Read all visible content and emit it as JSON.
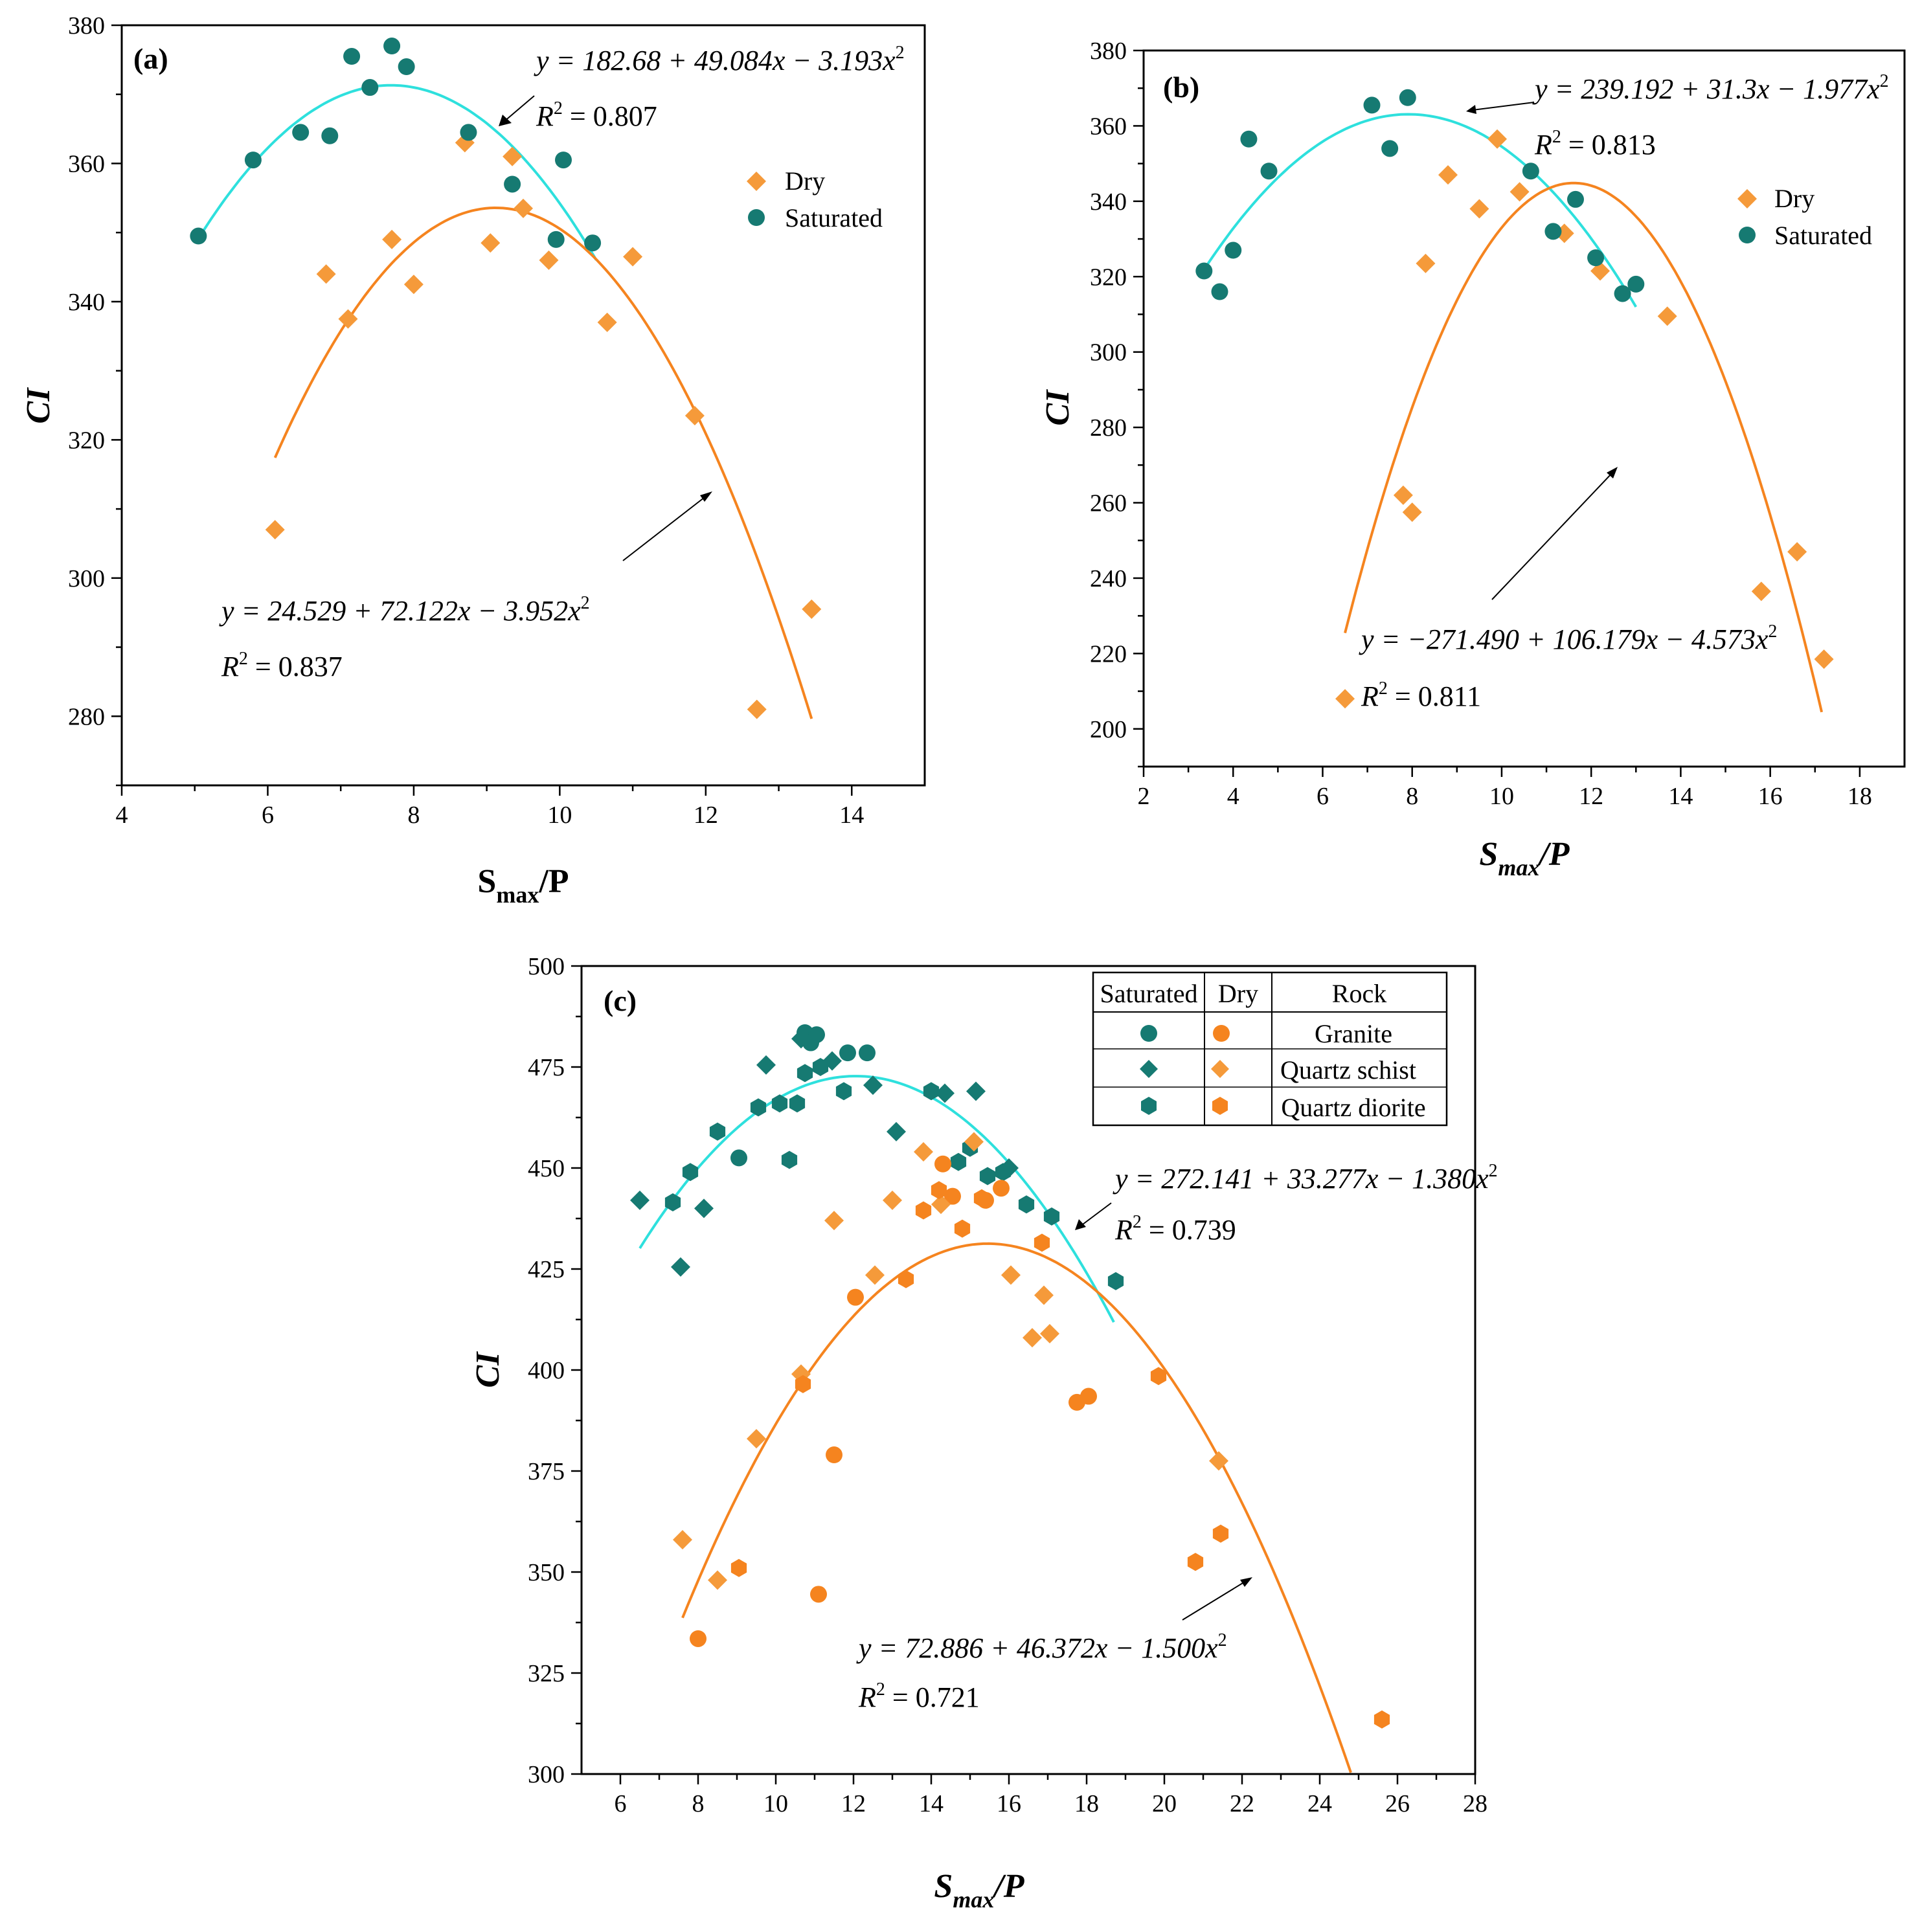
{
  "colors": {
    "dry": "#f59a3a",
    "saturated": "#167a72",
    "dry_fit": "#f5841f",
    "sat_fit": "#2ee0dd"
  },
  "chart_data": [
    {
      "type": "scatter",
      "panel": "(a)",
      "xlabel_main": "S",
      "xlabel_sub": "max",
      "xlabel_tail": "/P",
      "ylabel": "CI",
      "xlim": [
        4,
        15
      ],
      "ylim": [
        270,
        380
      ],
      "xticks": [
        4,
        6,
        8,
        10,
        12,
        14
      ],
      "yticks": [
        280,
        300,
        320,
        340,
        360,
        380
      ],
      "legend": [
        "Dry",
        "Saturated"
      ],
      "series": [
        {
          "name": "Dry",
          "marker": "diamond",
          "points": [
            [
              6.1,
              307
            ],
            [
              6.8,
              344
            ],
            [
              7.1,
              337.5
            ],
            [
              7.7,
              349
            ],
            [
              8.0,
              342.5
            ],
            [
              8.7,
              363
            ],
            [
              9.05,
              348.5
            ],
            [
              9.35,
              361
            ],
            [
              9.5,
              353.5
            ],
            [
              9.85,
              346
            ],
            [
              10.65,
              337
            ],
            [
              11.0,
              346.5
            ],
            [
              11.85,
              323.5
            ],
            [
              12.7,
              281
            ],
            [
              13.45,
              295.5
            ]
          ]
        },
        {
          "name": "Saturated",
          "marker": "circle",
          "points": [
            [
              5.05,
              349.5
            ],
            [
              5.8,
              360.5
            ],
            [
              6.45,
              364.5
            ],
            [
              6.85,
              364
            ],
            [
              7.15,
              375.5
            ],
            [
              7.4,
              371
            ],
            [
              7.7,
              377
            ],
            [
              7.9,
              374
            ],
            [
              8.75,
              364.5
            ],
            [
              9.35,
              357
            ],
            [
              9.95,
              349
            ],
            [
              10.05,
              360.5
            ],
            [
              10.45,
              348.5
            ]
          ]
        }
      ],
      "fits": [
        {
          "name": "Saturated",
          "a": 182.68,
          "b": 49.084,
          "c": -3.193,
          "xrange": [
            5.05,
            10.5
          ],
          "eq_prefix": "y = 182.68 + 49.084x − 3.193x",
          "r2_prefix": "R",
          "r2_value": " = 0.807"
        },
        {
          "name": "Dry",
          "a": 24.529,
          "b": 72.122,
          "c": -3.952,
          "xrange": [
            6.1,
            13.45
          ],
          "eq_prefix": "y = 24.529 + 72.122x − 3.952x",
          "r2_prefix": "R",
          "r2_value": " = 0.837"
        }
      ]
    },
    {
      "type": "scatter",
      "panel": "(b)",
      "xlabel_main": "S",
      "xlabel_sub": "max",
      "xlabel_tail": "/P",
      "ylabel": "CI",
      "xlim": [
        2,
        19
      ],
      "ylim": [
        190,
        380
      ],
      "xticks": [
        2,
        4,
        6,
        8,
        10,
        12,
        14,
        16,
        18
      ],
      "yticks": [
        200,
        220,
        240,
        260,
        280,
        300,
        320,
        340,
        360,
        380
      ],
      "legend": [
        "Dry",
        "Saturated"
      ],
      "series": [
        {
          "name": "Dry",
          "marker": "diamond",
          "points": [
            [
              6.5,
              208
            ],
            [
              7.8,
              262
            ],
            [
              8.0,
              257.5
            ],
            [
              8.3,
              323.5
            ],
            [
              8.8,
              347
            ],
            [
              9.5,
              338
            ],
            [
              9.9,
              356.5
            ],
            [
              10.4,
              342.5
            ],
            [
              11.4,
              331.5
            ],
            [
              12.2,
              321.5
            ],
            [
              13.7,
              309.5
            ],
            [
              15.8,
              236.5
            ],
            [
              16.6,
              247
            ],
            [
              17.2,
              218.5
            ]
          ]
        },
        {
          "name": "Saturated",
          "marker": "circle",
          "points": [
            [
              3.35,
              321.5
            ],
            [
              3.7,
              316
            ],
            [
              4.0,
              327
            ],
            [
              4.35,
              356.5
            ],
            [
              4.8,
              348
            ],
            [
              7.1,
              365.5
            ],
            [
              7.5,
              354
            ],
            [
              7.9,
              367.5
            ],
            [
              10.65,
              348
            ],
            [
              11.15,
              332
            ],
            [
              11.65,
              340.5
            ],
            [
              12.1,
              325
            ],
            [
              12.7,
              315.5
            ],
            [
              13.0,
              318
            ]
          ]
        }
      ],
      "fits": [
        {
          "name": "Saturated",
          "a": 239.192,
          "b": 31.3,
          "c": -1.977,
          "xrange": [
            3.3,
            13.0
          ],
          "eq_prefix": "y = 239.192 + 31.3x − 1.977x",
          "r2_prefix": "R",
          "r2_value": " = 0.813"
        },
        {
          "name": "Dry",
          "a": -271.49,
          "b": 106.179,
          "c": -4.573,
          "xrange": [
            6.5,
            17.15
          ],
          "eq_prefix": "y = −271.490 + 106.179x − 4.573x",
          "r2_prefix": "R",
          "r2_value": " = 0.811"
        }
      ]
    },
    {
      "type": "scatter",
      "panel": "(c)",
      "xlabel_main": "S",
      "xlabel_sub": "max",
      "xlabel_tail": "/P",
      "ylabel": "CI",
      "xlim": [
        5,
        28
      ],
      "ylim": [
        300,
        500
      ],
      "xticks": [
        6,
        8,
        10,
        12,
        14,
        16,
        18,
        20,
        22,
        24,
        26,
        28
      ],
      "yticks": [
        300,
        325,
        350,
        375,
        400,
        425,
        450,
        475,
        500
      ],
      "legend_table": {
        "headers": [
          "Saturated",
          "Dry",
          "Rock"
        ],
        "rocks": [
          "Granite",
          "Quartz schist",
          "Quartz diorite"
        ]
      },
      "series": [
        {
          "name": "Saturated Granite",
          "marker": "circle",
          "state": "sat",
          "points": [
            [
              10.75,
              483.5
            ],
            [
              11.05,
              483
            ],
            [
              12.35,
              478.5
            ],
            [
              11.85,
              478.5
            ],
            [
              10.9,
              481
            ],
            [
              9.05,
              452.5
            ]
          ]
        },
        {
          "name": "Saturated Quartz schist",
          "marker": "diamond",
          "state": "sat",
          "points": [
            [
              6.5,
              442
            ],
            [
              7.55,
              425.5
            ],
            [
              8.15,
              440
            ],
            [
              9.75,
              475.5
            ],
            [
              11.45,
              476.5
            ],
            [
              10.65,
              482
            ],
            [
              12.5,
              470.5
            ],
            [
              13.1,
              459
            ],
            [
              14.35,
              468.5
            ],
            [
              15.15,
              469
            ],
            [
              16.0,
              450
            ]
          ]
        },
        {
          "name": "Saturated Quartz diorite",
          "marker": "hexagon",
          "state": "sat",
          "points": [
            [
              7.35,
              441.5
            ],
            [
              7.8,
              449
            ],
            [
              8.5,
              459
            ],
            [
              9.55,
              465
            ],
            [
              10.1,
              466
            ],
            [
              10.55,
              466
            ],
            [
              10.35,
              452
            ],
            [
              10.75,
              473.5
            ],
            [
              11.15,
              475
            ],
            [
              11.75,
              469
            ],
            [
              14.0,
              469
            ],
            [
              14.7,
              451.5
            ],
            [
              15.0,
              455
            ],
            [
              15.45,
              448
            ],
            [
              15.85,
              449
            ],
            [
              16.45,
              441
            ],
            [
              17.1,
              438
            ],
            [
              18.75,
              422
            ]
          ]
        },
        {
          "name": "Dry Granite",
          "marker": "circle",
          "state": "dry",
          "points": [
            [
              8.0,
              333.5
            ],
            [
              11.1,
              344.5
            ],
            [
              11.5,
              379
            ],
            [
              12.05,
              418
            ],
            [
              14.3,
              451
            ],
            [
              14.55,
              443
            ],
            [
              15.4,
              442
            ],
            [
              15.8,
              445
            ],
            [
              17.75,
              392
            ],
            [
              18.05,
              393.5
            ]
          ]
        },
        {
          "name": "Dry Quartz schist",
          "marker": "diamond",
          "state": "dry",
          "points": [
            [
              7.6,
              358
            ],
            [
              8.5,
              348
            ],
            [
              9.5,
              383
            ],
            [
              10.65,
              399
            ],
            [
              11.5,
              437
            ],
            [
              12.55,
              423.5
            ],
            [
              13.0,
              442
            ],
            [
              13.8,
              454
            ],
            [
              14.25,
              441
            ],
            [
              15.1,
              456.5
            ],
            [
              16.05,
              423.5
            ],
            [
              16.6,
              408
            ],
            [
              16.9,
              418.5
            ],
            [
              17.05,
              409
            ],
            [
              21.4,
              377.5
            ]
          ]
        },
        {
          "name": "Dry Quartz diorite",
          "marker": "hexagon",
          "state": "dry",
          "points": [
            [
              9.05,
              351
            ],
            [
              10.7,
              396.5
            ],
            [
              13.35,
              422.5
            ],
            [
              13.8,
              439.5
            ],
            [
              14.2,
              444.5
            ],
            [
              14.8,
              435
            ],
            [
              15.3,
              442.5
            ],
            [
              16.85,
              431.5
            ],
            [
              19.85,
              398.5
            ],
            [
              20.8,
              352.5
            ],
            [
              21.45,
              359.5
            ],
            [
              25.6,
              313.5
            ]
          ]
        }
      ],
      "fits": [
        {
          "name": "Saturated",
          "a": 272.141,
          "b": 33.277,
          "c": -1.38,
          "xrange": [
            6.5,
            18.7
          ],
          "eq_prefix": "y = 272.141 + 33.277x − 1.380x",
          "r2_prefix": "R",
          "r2_value": " = 0.739"
        },
        {
          "name": "Dry",
          "a": 72.886,
          "b": 46.372,
          "c": -1.5,
          "xrange": [
            7.6,
            24.8
          ],
          "eq_prefix": "y = 72.886 + 46.372x − 1.500x",
          "r2_prefix": "R",
          "r2_value": " = 0.721"
        }
      ]
    }
  ]
}
